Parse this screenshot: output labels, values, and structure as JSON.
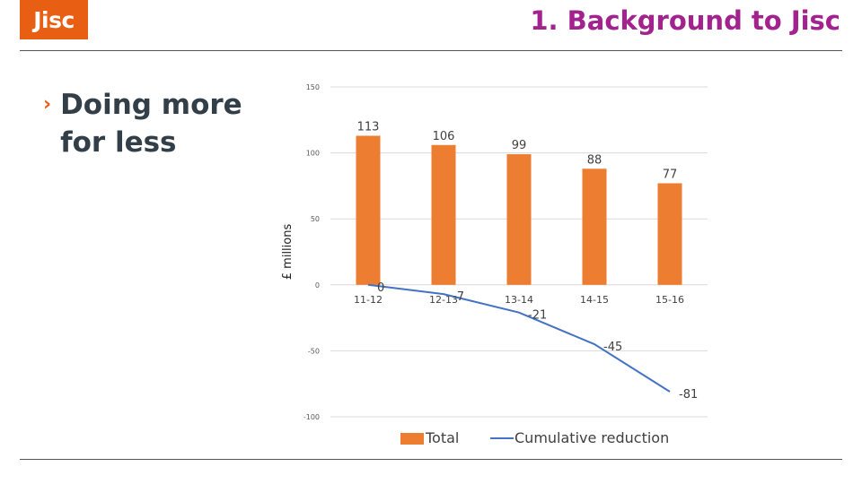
{
  "header": {
    "logo_text": "Jisc",
    "title": "1. Background to Jisc"
  },
  "content": {
    "bullet_marker": "›",
    "bullet_text": "Doing more for less"
  },
  "colors": {
    "accent": "#e85e13",
    "title": "#a3238e",
    "bar": "#ed7d31",
    "line": "#4472c4"
  },
  "chart_data": {
    "type": "bar",
    "categories": [
      "11-12",
      "12-13",
      "13-14",
      "14-15",
      "15-16"
    ],
    "series": [
      {
        "name": "Total",
        "type": "bar",
        "values": [
          113,
          106,
          99,
          88,
          77
        ]
      },
      {
        "name": "Cumulative reduction",
        "type": "line",
        "values": [
          0,
          -7,
          -21,
          -45,
          -81
        ]
      }
    ],
    "ylabel": "£ millions",
    "ylim": [
      -100,
      150
    ],
    "yticks": [
      150,
      100,
      50,
      0,
      -50,
      -100
    ],
    "grid": true,
    "legend": "bottom"
  }
}
